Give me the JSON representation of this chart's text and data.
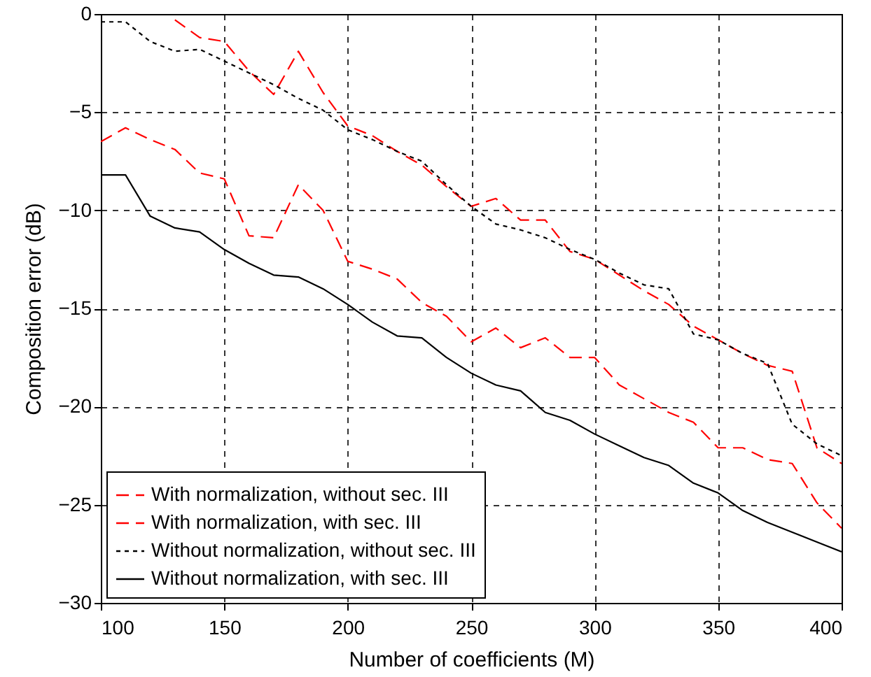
{
  "chart_data": {
    "type": "line",
    "xlabel": "Number of coefficients (M)",
    "ylabel": "Composition error (dB)",
    "x": [
      100,
      110,
      120,
      130,
      140,
      150,
      160,
      170,
      180,
      190,
      200,
      210,
      220,
      230,
      240,
      250,
      260,
      270,
      280,
      290,
      300,
      310,
      320,
      330,
      340,
      350,
      360,
      370,
      380,
      390,
      400
    ],
    "series": [
      {
        "name": "With normalization, without sec. III",
        "color": "#ff0000",
        "line_style": "dashed",
        "values": [
          null,
          null,
          null,
          -0.3,
          -1.2,
          -1.4,
          -2.9,
          -4.1,
          -1.9,
          -4.0,
          -5.7,
          -6.2,
          -7.0,
          -7.7,
          -8.8,
          -9.8,
          -9.4,
          -10.5,
          -10.5,
          -12.1,
          -12.5,
          -13.3,
          -14.1,
          -14.8,
          -15.9,
          -16.6,
          -17.3,
          -17.9,
          -18.2,
          -22.1,
          -22.9
        ]
      },
      {
        "name": "With normalization, with sec. III",
        "color": "#ff0000",
        "line_style": "dashed",
        "values": [
          -6.5,
          -5.8,
          -6.4,
          -6.9,
          -8.1,
          -8.4,
          -11.3,
          -11.4,
          -8.7,
          -10.0,
          -12.6,
          -13.0,
          -13.5,
          -14.7,
          -15.4,
          -16.7,
          -16.0,
          -17.0,
          -16.5,
          -17.5,
          -17.5,
          -18.9,
          -19.6,
          -20.3,
          -20.8,
          -22.1,
          -22.1,
          -22.7,
          -22.9,
          -24.9,
          -26.2
        ]
      },
      {
        "name": "Without normalization, without sec. III",
        "color": "#000000",
        "line_style": "dotted",
        "values": [
          -0.4,
          -0.4,
          -1.4,
          -1.9,
          -1.8,
          -2.4,
          -3.0,
          -3.6,
          -4.3,
          -4.9,
          -5.9,
          -6.4,
          -7.0,
          -7.5,
          -8.7,
          -9.8,
          -10.7,
          -11.0,
          -11.4,
          -12.0,
          -12.5,
          -13.2,
          -13.8,
          -14.0,
          -16.3,
          -16.6,
          -17.3,
          -17.8,
          -20.9,
          -21.9,
          -22.5
        ]
      },
      {
        "name": "Without normalization, with sec. III",
        "color": "#000000",
        "line_style": "solid",
        "values": [
          -8.2,
          -8.2,
          -10.3,
          -10.9,
          -11.1,
          -12.0,
          -12.7,
          -13.3,
          -13.4,
          -14.0,
          -14.8,
          -15.7,
          -16.4,
          -16.5,
          -17.5,
          -18.3,
          -18.9,
          -19.2,
          -20.3,
          -20.7,
          -21.4,
          -22.0,
          -22.6,
          -23.0,
          -23.9,
          -24.4,
          -25.3,
          -25.9,
          -26.4,
          -26.9,
          -27.4
        ]
      }
    ],
    "xlim": [
      100,
      400
    ],
    "xticks": [
      100,
      150,
      200,
      250,
      300,
      350,
      400
    ],
    "ylim": [
      -30,
      0
    ],
    "yticks": [
      -30,
      -25,
      -20,
      -15,
      -10,
      -5,
      0
    ],
    "grid": true,
    "legend": "bottom left",
    "marker": "none"
  }
}
